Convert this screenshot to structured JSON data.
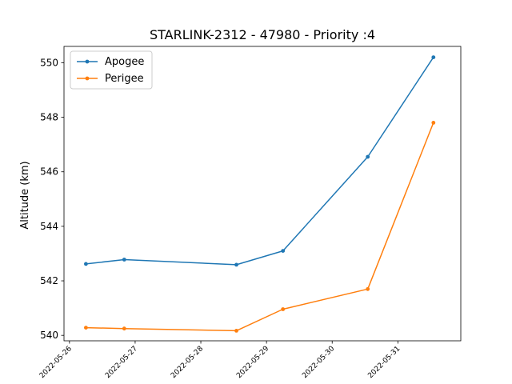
{
  "chart_data": {
    "type": "line",
    "title": "STARLINK-2312 - 47980 - Priority :4",
    "xlabel": "",
    "ylabel": "Altitude (km)",
    "x_ticks": [
      "2022-05-26",
      "2022-05-27",
      "2022-05-28",
      "2022-05-29",
      "2022-05-30",
      "2022-05-31"
    ],
    "y_ticks": [
      540,
      542,
      544,
      546,
      548,
      550
    ],
    "xlim": [
      "2022-05-25T22:00",
      "2022-05-31T23:00"
    ],
    "ylim": [
      539.8,
      550.6
    ],
    "grid": false,
    "legend_position": "top-left",
    "series": [
      {
        "name": "Apogee",
        "color": "#1f77b4",
        "x": [
          "2022-05-26T06:00",
          "2022-05-26T20:00",
          "2022-05-28T13:00",
          "2022-05-29T06:00",
          "2022-05-30T13:00",
          "2022-05-31T13:00"
        ],
        "y": [
          542.62,
          542.78,
          542.59,
          543.1,
          546.55,
          550.2
        ]
      },
      {
        "name": "Perigee",
        "color": "#ff7f0e",
        "x": [
          "2022-05-26T06:00",
          "2022-05-26T20:00",
          "2022-05-28T13:00",
          "2022-05-29T06:00",
          "2022-05-30T13:00",
          "2022-05-31T13:00"
        ],
        "y": [
          540.28,
          540.25,
          540.17,
          540.96,
          541.7,
          547.8
        ]
      }
    ]
  }
}
